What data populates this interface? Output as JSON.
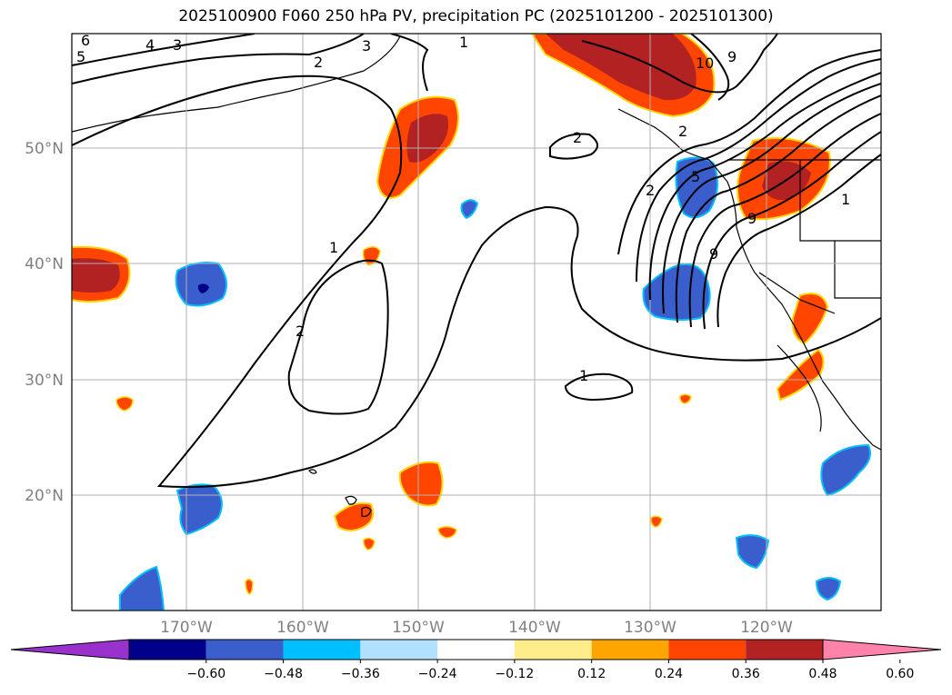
{
  "title": "2025100900 F060 250 hPa PV, precipitation PC (2025101200 - 2025101300)",
  "lat_labels": [
    "50°N",
    "40°N",
    "30°N",
    "20°N"
  ],
  "lon_labels": [
    "170°W",
    "160°W",
    "150°W",
    "140°W",
    "130°W",
    "120°W"
  ],
  "contour_labels": [
    "6",
    "5",
    "4",
    "3",
    "2",
    "3",
    "1",
    "2",
    "1",
    "2",
    "1",
    "2",
    "9",
    "10",
    "2",
    "5",
    "9",
    "1",
    "9"
  ],
  "colorbar": {
    "ticks": [
      "−0.60",
      "−0.48",
      "−0.36",
      "−0.24",
      "−0.12",
      "0.12",
      "0.24",
      "0.36",
      "0.48",
      "0.60"
    ],
    "colors": [
      "#9932cc",
      "#00008b",
      "#3a5fcd",
      "#00bfff",
      "#b0e2ff",
      "#ffffff",
      "#ffec8b",
      "#ffa500",
      "#ff4500",
      "#b22222",
      "#ff82ab"
    ]
  },
  "colors": {
    "blue": "#3a5fcd",
    "dark_blue": "#00008b",
    "cyan": "#00bfff",
    "orange": "#ff4500",
    "dark_red": "#b22222",
    "yellow": "#ffd700",
    "grid": "#b0b0b0"
  }
}
